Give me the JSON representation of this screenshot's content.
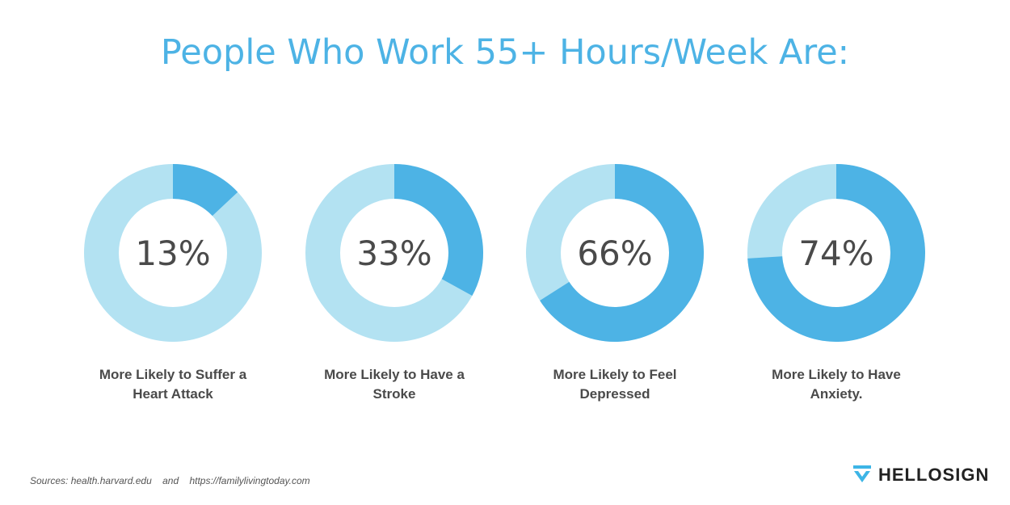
{
  "title": "People Who Work 55+ Hours/Week Are:",
  "colors": {
    "accent": "#4db3e5",
    "remainder": "#b3e2f2",
    "text": "#4a4a4a"
  },
  "chart_data": {
    "type": "pie",
    "title": "People Who Work 55+ Hours/Week Are:",
    "series": [
      {
        "value": 13,
        "pct_label": "13%",
        "label": "More Likely to Suffer a Heart Attack",
        "line1": "More Likely to Suffer a",
        "line2": "Heart Attack"
      },
      {
        "value": 33,
        "pct_label": "33%",
        "label": "More Likely to Have a Stroke",
        "line1": "More Likely to Have a",
        "line2": "Stroke"
      },
      {
        "value": 66,
        "pct_label": "66%",
        "label": "More Likely to Feel Depressed",
        "line1": "More Likely to Feel",
        "line2": "Depressed"
      },
      {
        "value": 74,
        "pct_label": "74%",
        "label": "More Likely to Have Anxiety.",
        "line1": "More Likely to Have",
        "line2": "Anxiety."
      }
    ]
  },
  "footer": {
    "sources": "Sources: health.harvard.edu    and    https://familylivingtoday.com",
    "logo_icon": "hellosign-check-logo",
    "logo_text": "HELLOSIGN"
  }
}
